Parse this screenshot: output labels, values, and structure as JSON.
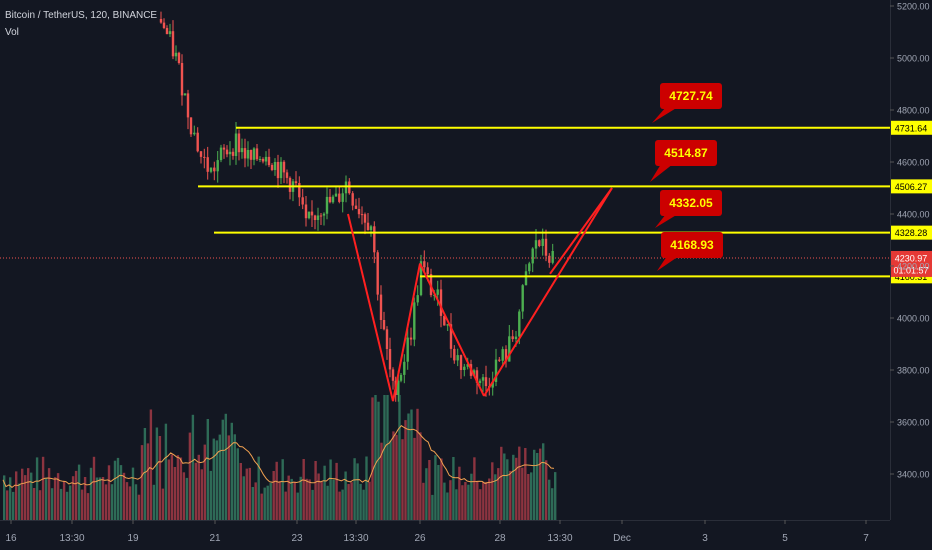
{
  "header": {
    "symbol": "Bitcoin / TetherUS, 120, BINANCE",
    "volume_label": "Vol"
  },
  "colors": {
    "background": "#131722",
    "up": "#26a69a",
    "up_bright": "#4caf50",
    "down": "#ef5350",
    "volume_up": "#2e6b57",
    "volume_down": "#8c3440",
    "volume_ma": "#f0a050",
    "level_line": "#ffff00",
    "trend_line": "#ff2020",
    "callout_bg": "#cc0000",
    "callout_text": "#ffff00",
    "axis_text": "#a0a6b4",
    "price_line": "#ef5350"
  },
  "chart_data": {
    "type": "candlestick",
    "title": "Bitcoin / TetherUS, 120, BINANCE",
    "ylim": [
      3200,
      5200
    ],
    "y_ticks": [
      3400,
      3600,
      3800,
      4000,
      4200,
      4400,
      4600,
      4800,
      5000,
      5200
    ],
    "y_tick_labels": [
      "3400.00",
      "3600.00",
      "3800.00",
      "4000.00",
      "4200.00",
      "4400.00",
      "4600.00",
      "4800.00",
      "5000.00",
      "5200.00"
    ],
    "x_tick_labels": [
      "16",
      "13:30",
      "19",
      "21",
      "23",
      "13:30",
      "26",
      "28",
      "13:30",
      "Dec",
      "3",
      "5",
      "7"
    ],
    "horizontal_levels": [
      {
        "value": 4731.64,
        "label": "4731.64"
      },
      {
        "value": 4506.27,
        "label": "4506.27"
      },
      {
        "value": 4328.28,
        "label": "4328.28"
      },
      {
        "value": 4160.31,
        "label": "4160.31"
      }
    ],
    "callouts": [
      "4727.74",
      "4514.87",
      "4332.05",
      "4168.93"
    ],
    "current_price": {
      "value": 4230.97,
      "label": "4230.97",
      "countdown": "01:01:57"
    },
    "trend_lines": [
      {
        "from": 4400,
        "to": 3680
      },
      {
        "from": 3680,
        "to": 4210
      },
      {
        "from": 4210,
        "to": 3700
      },
      {
        "from": 3700,
        "to": 4500
      }
    ],
    "volume": {
      "label": "Vol",
      "has_moving_average": true
    },
    "grid": false
  }
}
